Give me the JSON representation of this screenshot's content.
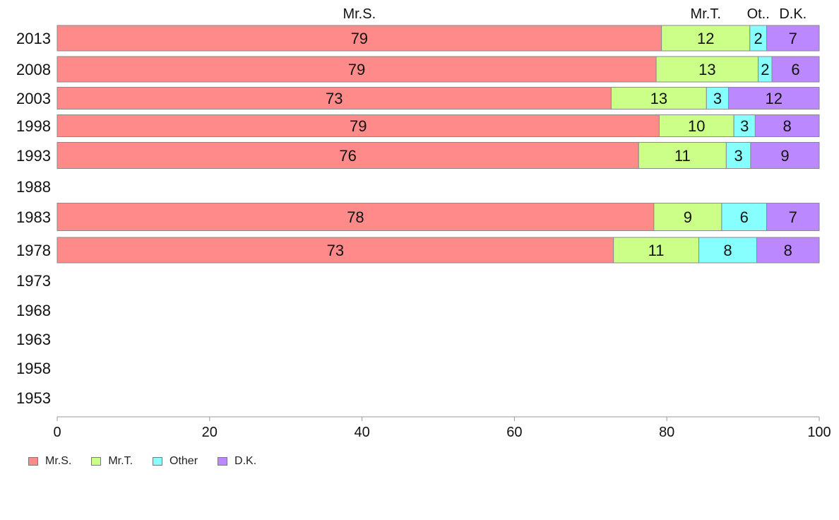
{
  "chart_data": {
    "type": "bar",
    "orientation": "horizontal",
    "stacked": true,
    "title": "",
    "xlabel": "",
    "ylabel": "",
    "xlim": [
      0,
      100
    ],
    "x_ticks": [
      "0",
      "20",
      "40",
      "60",
      "80",
      "100"
    ],
    "categories": [
      "2013",
      "2008",
      "2003",
      "1998",
      "1993",
      "1988",
      "1983",
      "1978",
      "1973",
      "1968",
      "1963",
      "1958",
      "1953"
    ],
    "series": [
      {
        "name": "Mr.S.",
        "color": "#ff8a8a",
        "values": [
          79.3,
          78.6,
          72.7,
          79.0,
          76.3,
          null,
          78.3,
          73.0,
          null,
          null,
          null,
          null,
          null
        ],
        "labels": [
          "79",
          "79",
          "73",
          "79",
          "76",
          "",
          "78",
          "73",
          "",
          "",
          "",
          "",
          ""
        ]
      },
      {
        "name": "Mr.T.",
        "color": "#ccff88",
        "values": [
          11.6,
          13.4,
          12.5,
          9.8,
          11.5,
          null,
          8.9,
          11.2,
          null,
          null,
          null,
          null,
          null
        ],
        "labels": [
          "12",
          "13",
          "13",
          "10",
          "11",
          "",
          "9",
          "11",
          "",
          "",
          "",
          "",
          ""
        ]
      },
      {
        "name": "Other",
        "color": "#88ffff",
        "values": [
          2.2,
          1.8,
          2.9,
          2.8,
          3.2,
          null,
          5.9,
          7.6,
          null,
          null,
          null,
          null,
          null
        ],
        "labels": [
          "2",
          "2",
          "3",
          "3",
          "3",
          "",
          "6",
          "8",
          "",
          "",
          "",
          "",
          ""
        ]
      },
      {
        "name": "D.K.",
        "color": "#bb88ff",
        "values": [
          6.9,
          6.2,
          11.9,
          8.4,
          9.0,
          null,
          6.9,
          8.2,
          null,
          null,
          null,
          null,
          null
        ],
        "labels": [
          "7",
          "6",
          "12",
          "8",
          "9",
          "",
          "7",
          "8",
          "",
          "",
          "",
          "",
          ""
        ]
      }
    ],
    "top_labels": [
      "Mr.S.",
      "Mr.T.",
      "Ot..",
      "D.K."
    ],
    "legend": {
      "placement": "bottom-left",
      "entries": [
        "Mr.S.",
        "Mr.T.",
        "Other",
        "D.K."
      ]
    },
    "grid": false
  }
}
